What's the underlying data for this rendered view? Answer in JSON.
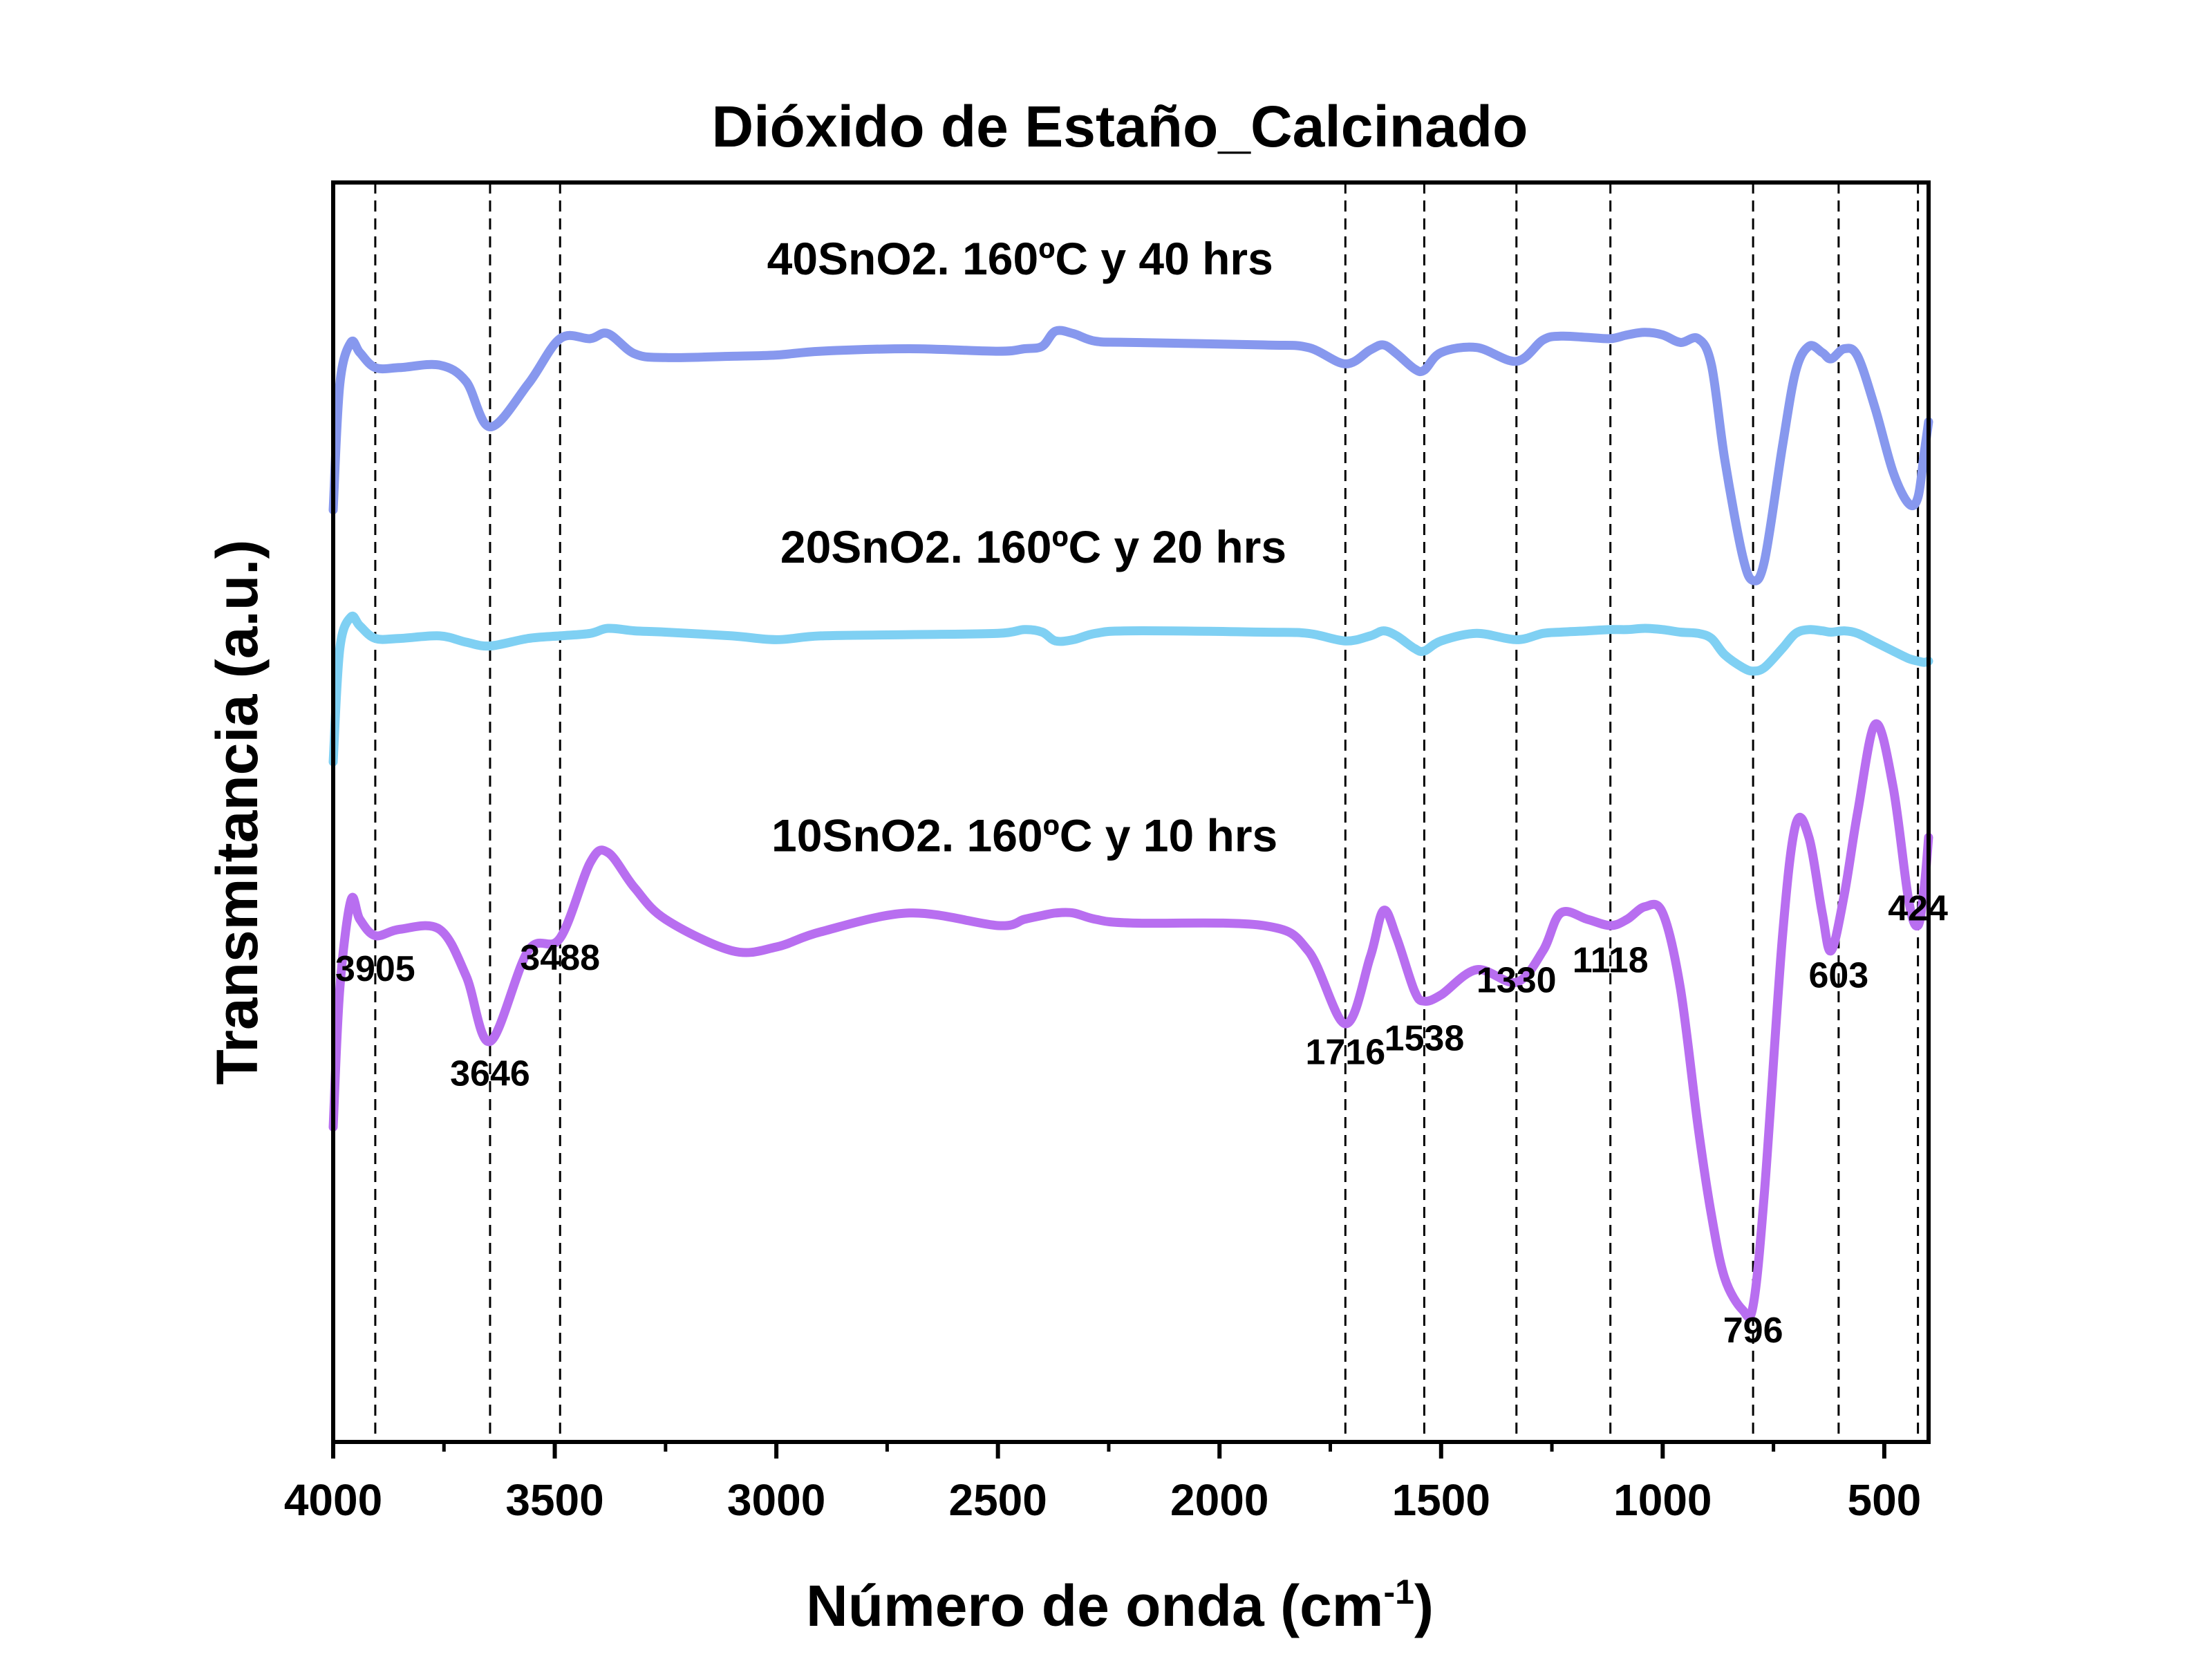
{
  "chart_data": {
    "type": "line",
    "title": "Dióxido de Estaño_Calcinado",
    "xlabel": "Número de onda (cm",
    "xlabel_sup": "-1",
    "xlabel_close": ")",
    "ylabel": "Transmitancia (a.u.)",
    "xlim": [
      4000,
      400
    ],
    "x_reversed": true,
    "ylim": [
      0,
      100
    ],
    "x_ticks": [
      4000,
      3500,
      3000,
      2500,
      2000,
      1500,
      1000,
      500
    ],
    "x_tick_labels": [
      "4000",
      "3500",
      "3000",
      "2500",
      "2000",
      "1500",
      "1000",
      "500"
    ],
    "reference_lines": [
      3905,
      3646,
      3488,
      1716,
      1538,
      1330,
      1118,
      796,
      603,
      424
    ],
    "grid": false,
    "legend": "labels placed above each curve",
    "peak_labels": [
      {
        "text": "3905",
        "x": 3905,
        "y": 36.6
      },
      {
        "text": "3646",
        "x": 3646,
        "y": 28.3
      },
      {
        "text": "3488",
        "x": 3488,
        "y": 37.5
      },
      {
        "text": "1716",
        "x": 1716,
        "y": 30.0
      },
      {
        "text": "1538",
        "x": 1538,
        "y": 31.1
      },
      {
        "text": "1330",
        "x": 1330,
        "y": 35.7
      },
      {
        "text": "1118",
        "x": 1118,
        "y": 37.3
      },
      {
        "text": "796",
        "x": 796,
        "y": 7.9
      },
      {
        "text": "603",
        "x": 603,
        "y": 36.1
      },
      {
        "text": "424",
        "x": 424,
        "y": 41.4
      }
    ],
    "series": [
      {
        "name": "40SnO2. 160ºC y 40 hrs",
        "color": "#8798ee",
        "label_x": 2450,
        "label_y": 92.7,
        "x": [
          4000,
          3985,
          3960,
          3940,
          3905,
          3850,
          3760,
          3700,
          3646,
          3560,
          3488,
          3420,
          3380,
          3320,
          3250,
          3100,
          3000,
          2900,
          2700,
          2500,
          2440,
          2400,
          2370,
          2330,
          2280,
          2200,
          1900,
          1800,
          1716,
          1660,
          1630,
          1600,
          1560,
          1538,
          1500,
          1420,
          1330,
          1270,
          1230,
          1170,
          1118,
          1080,
          1040,
          1000,
          960,
          920,
          890,
          860,
          820,
          796,
          770,
          730,
          700,
          670,
          640,
          620,
          590,
          560,
          520,
          480,
          445,
          424,
          410,
          400
        ],
        "y": [
          74,
          84,
          87.3,
          86.5,
          85.3,
          85.3,
          85.5,
          84.2,
          80.6,
          84.0,
          87.6,
          87.6,
          88.0,
          86.4,
          86.1,
          86.2,
          86.3,
          86.6,
          86.8,
          86.6,
          86.8,
          87.0,
          88.2,
          88.0,
          87.4,
          87.3,
          87.1,
          86.9,
          85.6,
          86.7,
          87.1,
          86.4,
          85.2,
          85.1,
          86.5,
          86.9,
          85.8,
          87.5,
          87.8,
          87.7,
          87.6,
          87.9,
          88.1,
          87.9,
          87.3,
          87.6,
          85.5,
          78.0,
          70.4,
          68.4,
          70.0,
          79.0,
          85.0,
          87.0,
          86.5,
          86.0,
          86.8,
          86.2,
          82.0,
          77.0,
          74.5,
          75.0,
          78.5,
          81.0
        ]
      },
      {
        "name": "20SnO2. 160ºC y 20 hrs",
        "color": "#7fd0f3",
        "label_x": 2420,
        "label_y": 69.8,
        "x": [
          4000,
          3985,
          3960,
          3940,
          3905,
          3850,
          3760,
          3700,
          3646,
          3560,
          3488,
          3420,
          3380,
          3320,
          3250,
          3100,
          3000,
          2900,
          2700,
          2500,
          2440,
          2400,
          2370,
          2330,
          2280,
          2200,
          1900,
          1800,
          1716,
          1660,
          1630,
          1600,
          1560,
          1538,
          1500,
          1420,
          1330,
          1270,
          1230,
          1170,
          1118,
          1080,
          1040,
          1000,
          960,
          920,
          890,
          860,
          820,
          796,
          770,
          730,
          700,
          670,
          640,
          620,
          590,
          560,
          520,
          480,
          445,
          424,
          410,
          400
        ],
        "y": [
          54,
          63,
          65.5,
          64.8,
          63.8,
          63.8,
          64.0,
          63.5,
          63.2,
          63.8,
          64.0,
          64.2,
          64.6,
          64.4,
          64.3,
          64.0,
          63.7,
          64.0,
          64.1,
          64.2,
          64.5,
          64.3,
          63.6,
          63.7,
          64.2,
          64.4,
          64.3,
          64.2,
          63.6,
          64.0,
          64.4,
          64.0,
          63.0,
          62.8,
          63.6,
          64.2,
          63.7,
          64.2,
          64.3,
          64.4,
          64.5,
          64.5,
          64.6,
          64.5,
          64.3,
          64.2,
          63.8,
          62.5,
          61.5,
          61.2,
          61.5,
          63.0,
          64.2,
          64.5,
          64.4,
          64.3,
          64.4,
          64.2,
          63.5,
          62.8,
          62.2,
          62.0,
          61.9,
          62.0
        ]
      },
      {
        "name": "10SnO2. 160ºC y 10 hrs",
        "color": "#b86ef0",
        "label_x": 2440,
        "label_y": 46.9,
        "x": [
          4000,
          3985,
          3960,
          3940,
          3905,
          3850,
          3760,
          3700,
          3646,
          3560,
          3488,
          3420,
          3380,
          3320,
          3250,
          3100,
          3000,
          2900,
          2700,
          2500,
          2440,
          2400,
          2370,
          2330,
          2280,
          2200,
          1900,
          1800,
          1716,
          1660,
          1630,
          1600,
          1560,
          1538,
          1500,
          1420,
          1330,
          1270,
          1230,
          1170,
          1118,
          1080,
          1040,
          1000,
          960,
          920,
          890,
          860,
          820,
          796,
          770,
          730,
          700,
          670,
          640,
          620,
          590,
          560,
          520,
          480,
          445,
          424,
          410,
          400
        ],
        "y": [
          25,
          36,
          43.0,
          41.5,
          40.2,
          40.7,
          40.7,
          37.0,
          31.8,
          39.0,
          40.0,
          46.0,
          46.8,
          44.0,
          41.5,
          39.0,
          39.3,
          40.5,
          42.0,
          41.0,
          41.5,
          41.8,
          42.0,
          42.0,
          41.5,
          41.2,
          41.0,
          39.0,
          33.2,
          38.5,
          42.2,
          40.0,
          35.8,
          35.0,
          35.5,
          37.5,
          36.5,
          39.0,
          42.0,
          41.5,
          41.0,
          41.5,
          42.5,
          42.0,
          36.0,
          25.0,
          18.0,
          13.0,
          10.5,
          10.8,
          20.0,
          40.0,
          49.0,
          48.0,
          42.0,
          39.0,
          43.5,
          50.0,
          57.0,
          52.0,
          43.0,
          41.0,
          44.0,
          48.0
        ]
      }
    ]
  }
}
